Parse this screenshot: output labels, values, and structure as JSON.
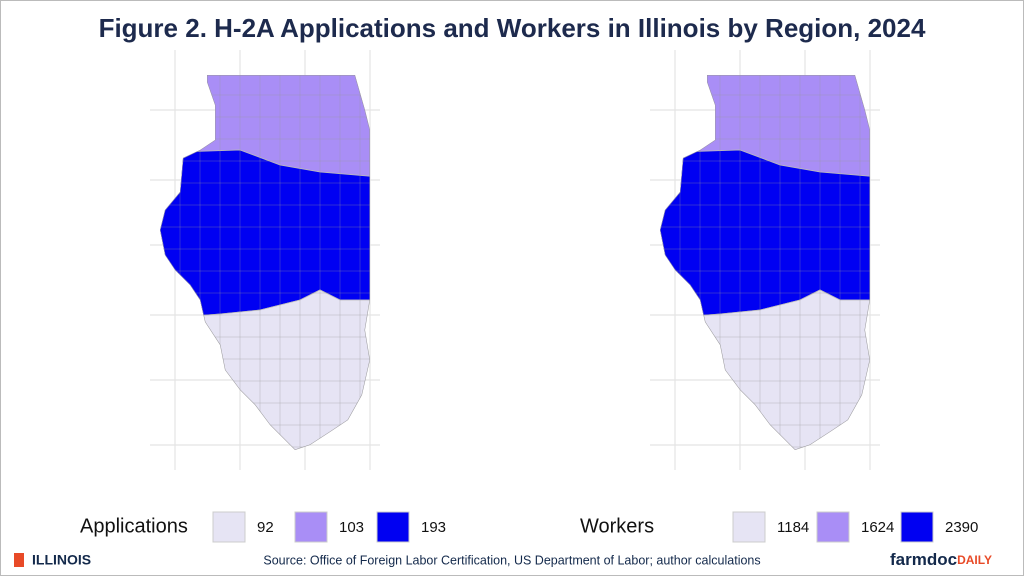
{
  "title": "Figure 2. H-2A Applications and Workers in Illinois by Region, 2024",
  "maps": [
    {
      "legend_title": "Applications",
      "classes": [
        {
          "value": 92,
          "color": "#e6e4f4"
        },
        {
          "value": 103,
          "color": "#a98ef6"
        },
        {
          "value": 193,
          "color": "#0000f2"
        }
      ]
    },
    {
      "legend_title": "Workers",
      "classes": [
        {
          "value": 1184,
          "color": "#e6e4f4"
        },
        {
          "value": 1624,
          "color": "#a98ef6"
        },
        {
          "value": 2390,
          "color": "#0000f2"
        }
      ]
    }
  ],
  "footer": {
    "logo": "ILLINOIS",
    "source": "Source: Office of Foreign Labor Certification, US Department of Labor; author calculations",
    "brand_main": "farmdoc",
    "brand_sub": "DAILY"
  }
}
